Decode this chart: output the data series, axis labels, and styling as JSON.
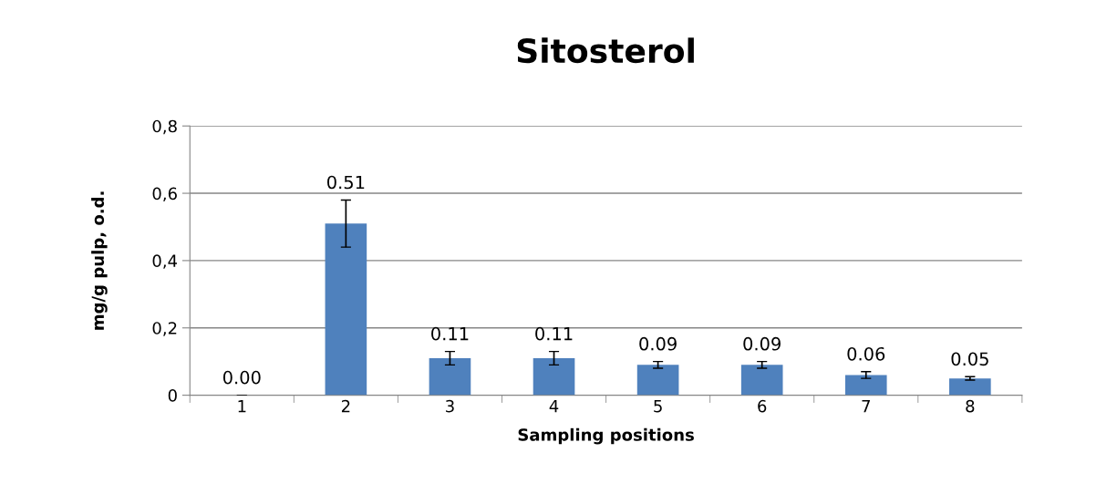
{
  "chart_data": {
    "type": "bar",
    "title": "Sitosterol",
    "xlabel": "Sampling positions",
    "ylabel": "mg/g pulp, o.d.",
    "categories": [
      "1",
      "2",
      "3",
      "4",
      "5",
      "6",
      "7",
      "8"
    ],
    "values": [
      0.0,
      0.51,
      0.11,
      0.11,
      0.09,
      0.09,
      0.06,
      0.05
    ],
    "value_labels": [
      "0.00",
      "0.51",
      "0.11",
      "0.11",
      "0.09",
      "0.09",
      "0.06",
      "0.05"
    ],
    "errors": [
      null,
      0.07,
      0.02,
      0.02,
      0.01,
      0.01,
      0.01,
      0.005
    ],
    "color": "#4f81bd",
    "ylim": [
      0,
      0.8
    ],
    "yticks": [
      0,
      {
        "value": 0.2,
        "label": "0,2"
      },
      {
        "value": 0.4,
        "label": "0,4"
      },
      {
        "value": 0.6,
        "label": "0,6"
      },
      {
        "value": 0.8,
        "label": "0,8"
      }
    ],
    "grid": "y"
  }
}
